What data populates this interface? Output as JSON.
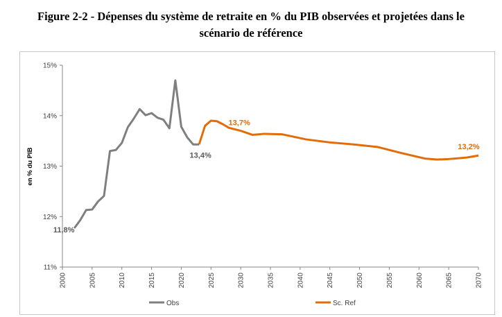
{
  "title_line1": "Figure 2-2 - Dépenses du système de retraite en % du PIB observées et projetées dans le",
  "title_line2": "scénario de référence",
  "chart_data": {
    "type": "line",
    "title": "Figure 2-2 - Dépenses du système de retraite en % du PIB observées et projetées dans le scénario de référence",
    "ylabel": "en % du PIB",
    "xlabel": "",
    "xlim": [
      2000,
      2070
    ],
    "ylim": [
      11,
      15
    ],
    "x_ticks": [
      "2000",
      "2005",
      "2010",
      "2015",
      "2020",
      "2025",
      "2030",
      "2035",
      "2040",
      "2045",
      "2050",
      "2055",
      "2060",
      "2065",
      "2070"
    ],
    "y_ticks": [
      "11%",
      "12%",
      "13%",
      "14%",
      "15%"
    ],
    "grid": false,
    "legend_position": "bottom",
    "series": [
      {
        "name": "Obs",
        "color": "#7f7f7f",
        "x": [
          2002,
          2003,
          2004,
          2005,
          2006,
          2007,
          2008,
          2009,
          2010,
          2011,
          2012,
          2013,
          2014,
          2015,
          2016,
          2017,
          2018,
          2019,
          2020,
          2021,
          2022,
          2023
        ],
        "y": [
          11.77,
          11.93,
          12.13,
          12.14,
          12.3,
          12.41,
          13.3,
          13.32,
          13.46,
          13.77,
          13.94,
          14.13,
          14.01,
          14.05,
          13.96,
          13.92,
          13.75,
          14.7,
          13.78,
          13.57,
          13.43,
          13.43
        ]
      },
      {
        "name": "Sc. Ref",
        "color": "#e36c09",
        "x": [
          2023,
          2024,
          2025,
          2026,
          2027,
          2028,
          2030,
          2032,
          2034,
          2037,
          2041,
          2045,
          2049,
          2053,
          2057,
          2061,
          2063,
          2065,
          2068,
          2070
        ],
        "y": [
          13.43,
          13.8,
          13.9,
          13.89,
          13.83,
          13.76,
          13.7,
          13.62,
          13.64,
          13.63,
          13.53,
          13.47,
          13.43,
          13.38,
          13.26,
          13.15,
          13.13,
          13.14,
          13.17,
          13.21
        ]
      }
    ],
    "annotations": [
      {
        "text": "11,8%",
        "x": 2002,
        "y": 11.8,
        "color": "#595959"
      },
      {
        "text": "13,4%",
        "x": 2023,
        "y": 13.4,
        "color": "#595959"
      },
      {
        "text": "13,7%",
        "x": 2030,
        "y": 13.7,
        "color": "#e36c09"
      },
      {
        "text": "13,2%",
        "x": 2070,
        "y": 13.2,
        "color": "#e36c09"
      }
    ]
  }
}
